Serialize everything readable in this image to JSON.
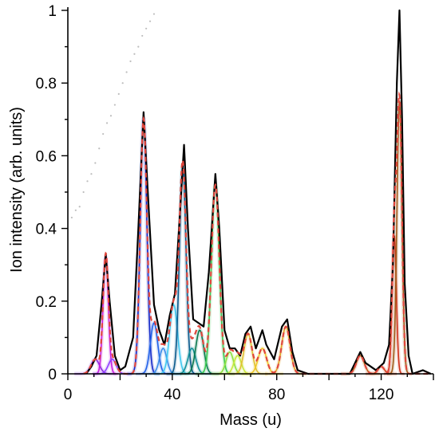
{
  "chart_data": {
    "type": "line",
    "title": "",
    "xlabel": "Mass (u)",
    "ylabel": "Ion intensity (arb. units)",
    "xlim": [
      0,
      140
    ],
    "ylim": [
      0,
      1
    ],
    "xticks": [
      0,
      40,
      80,
      120
    ],
    "yticks": [
      0,
      0.2,
      0.4,
      0.6,
      0.8,
      1
    ],
    "ytick_labels": [
      "0",
      "0.2",
      "0.4",
      "0.6",
      "0.8",
      "1"
    ],
    "grid": false,
    "legend": "none",
    "measured_color": "#000000",
    "fit_total_color": "#e0463c",
    "components": [
      {
        "center": 10.5,
        "amplitude": 0.04,
        "width": 1.6,
        "color": "#8a2be2"
      },
      {
        "center": 14.5,
        "amplitude": 0.32,
        "width": 1.0,
        "color": "#c81ee0"
      },
      {
        "center": 17.0,
        "amplitude": 0.04,
        "width": 1.5,
        "color": "#9040ff"
      },
      {
        "center": 29.0,
        "amplitude": 0.7,
        "width": 1.25,
        "color": "#1428c8"
      },
      {
        "center": 33.0,
        "amplitude": 0.14,
        "width": 1.4,
        "color": "#2060e8"
      },
      {
        "center": 36.5,
        "amplitude": 0.07,
        "width": 1.4,
        "color": "#3c8ce8"
      },
      {
        "center": 40.5,
        "amplitude": 0.19,
        "width": 1.5,
        "color": "#40c8f0"
      },
      {
        "center": 44.0,
        "amplitude": 0.57,
        "width": 1.25,
        "color": "#0a5a8c"
      },
      {
        "center": 47.5,
        "amplitude": 0.07,
        "width": 1.5,
        "color": "#10909a"
      },
      {
        "center": 50.5,
        "amplitude": 0.12,
        "width": 1.5,
        "color": "#0a7850"
      },
      {
        "center": 56.5,
        "amplitude": 0.52,
        "width": 1.5,
        "color": "#38c850"
      },
      {
        "center": 62.0,
        "amplitude": 0.06,
        "width": 1.4,
        "color": "#8ce040"
      },
      {
        "center": 65.0,
        "amplitude": 0.05,
        "width": 1.4,
        "color": "#c8e83c"
      },
      {
        "center": 69.0,
        "amplitude": 0.11,
        "width": 1.5,
        "color": "#e0c030"
      },
      {
        "center": 74.5,
        "amplitude": 0.07,
        "width": 1.6,
        "color": "#f0c828"
      },
      {
        "center": 83.5,
        "amplitude": 0.13,
        "width": 1.6,
        "color": "#e0a020"
      },
      {
        "center": 112.0,
        "amplitude": 0.05,
        "width": 1.5,
        "color": "#c06018"
      },
      {
        "center": 120.0,
        "amplitude": 0.02,
        "width": 1.2,
        "color": "#d04018"
      },
      {
        "center": 125.0,
        "amplitude": 0.38,
        "width": 0.8,
        "color": "#d03018"
      },
      {
        "center": 127.0,
        "amplitude": 0.75,
        "width": 0.95,
        "color": "#a05a18"
      }
    ],
    "measured_points": [
      [
        7,
        0.0
      ],
      [
        9,
        0.02
      ],
      [
        11,
        0.05
      ],
      [
        13,
        0.2
      ],
      [
        14.5,
        0.33
      ],
      [
        16,
        0.2
      ],
      [
        18,
        0.05
      ],
      [
        20,
        0.01
      ],
      [
        22,
        0.02
      ],
      [
        25,
        0.1
      ],
      [
        27,
        0.4
      ],
      [
        29,
        0.72
      ],
      [
        31,
        0.45
      ],
      [
        33,
        0.19
      ],
      [
        35,
        0.12
      ],
      [
        37,
        0.08
      ],
      [
        39,
        0.16
      ],
      [
        41,
        0.22
      ],
      [
        43,
        0.45
      ],
      [
        44.5,
        0.63
      ],
      [
        46,
        0.4
      ],
      [
        48,
        0.15
      ],
      [
        50,
        0.14
      ],
      [
        52,
        0.13
      ],
      [
        54,
        0.28
      ],
      [
        56.5,
        0.55
      ],
      [
        58,
        0.4
      ],
      [
        60,
        0.12
      ],
      [
        62,
        0.07
      ],
      [
        64,
        0.07
      ],
      [
        66,
        0.05
      ],
      [
        68,
        0.11
      ],
      [
        70,
        0.13
      ],
      [
        72,
        0.07
      ],
      [
        74.5,
        0.12
      ],
      [
        76,
        0.08
      ],
      [
        79,
        0.04
      ],
      [
        82,
        0.13
      ],
      [
        84,
        0.15
      ],
      [
        86,
        0.06
      ],
      [
        88,
        0.01
      ],
      [
        92,
        0.0
      ],
      [
        100,
        0.0
      ],
      [
        108,
        0.0
      ],
      [
        110,
        0.03
      ],
      [
        112,
        0.06
      ],
      [
        114,
        0.03
      ],
      [
        118,
        0.01
      ],
      [
        121,
        0.03
      ],
      [
        123,
        0.08
      ],
      [
        124.5,
        0.3
      ],
      [
        126,
        0.8
      ],
      [
        127,
        1.0
      ],
      [
        128,
        0.7
      ],
      [
        129,
        0.25
      ],
      [
        130.5,
        0.05
      ],
      [
        132,
        0.0
      ],
      [
        136,
        0.01
      ],
      [
        139,
        0.0
      ]
    ],
    "inset_dots": [
      [
        1.5,
        0.43
      ],
      [
        3,
        0.45
      ],
      [
        4.5,
        0.46
      ],
      [
        6,
        0.5
      ],
      [
        7.5,
        0.53
      ],
      [
        9,
        0.55
      ],
      [
        10.5,
        0.58
      ],
      [
        12,
        0.62
      ],
      [
        13.5,
        0.66
      ],
      [
        15,
        0.69
      ],
      [
        16.5,
        0.71
      ],
      [
        18,
        0.74
      ],
      [
        19.5,
        0.77
      ],
      [
        21,
        0.8
      ],
      [
        22.5,
        0.83
      ],
      [
        24,
        0.86
      ],
      [
        25.5,
        0.88
      ],
      [
        27,
        0.9
      ],
      [
        28.5,
        0.93
      ],
      [
        30,
        0.95
      ],
      [
        31.5,
        0.97
      ],
      [
        33,
        0.99
      ]
    ]
  }
}
